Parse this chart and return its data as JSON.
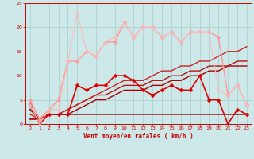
{
  "bg_color": "#cce8e8",
  "grid_color": "#aacccc",
  "xlabel": "Vent moyen/en rafales ( km/h )",
  "xlabel_color": "#cc0000",
  "tick_color": "#cc0000",
  "xlim": [
    -0.5,
    23.5
  ],
  "ylim": [
    0,
    25
  ],
  "yticks": [
    0,
    5,
    10,
    15,
    20,
    25
  ],
  "xticks": [
    0,
    1,
    2,
    3,
    4,
    5,
    6,
    7,
    8,
    9,
    10,
    11,
    12,
    13,
    14,
    15,
    16,
    17,
    18,
    19,
    20,
    21,
    22,
    23
  ],
  "series": [
    {
      "x": [
        0,
        1,
        2,
        3,
        4,
        5,
        6,
        7,
        8,
        9,
        10,
        11,
        12,
        13,
        14,
        15,
        16,
        17,
        18,
        19,
        20,
        21,
        22,
        23
      ],
      "y": [
        3,
        1,
        2,
        2,
        2,
        2,
        2,
        2,
        2,
        2,
        2,
        2,
        2,
        2,
        2,
        2,
        2,
        2,
        2,
        2,
        2,
        2,
        2,
        2
      ],
      "color": "#880000",
      "lw": 1.2,
      "marker": null,
      "ms": 0,
      "zorder": 2
    },
    {
      "x": [
        0,
        1,
        2,
        3,
        4,
        5,
        6,
        7,
        8,
        9,
        10,
        11,
        12,
        13,
        14,
        15,
        16,
        17,
        18,
        19,
        20,
        21,
        22,
        23
      ],
      "y": [
        1,
        1,
        2,
        2,
        2,
        3,
        4,
        5,
        5,
        6,
        7,
        7,
        7,
        8,
        8,
        9,
        9,
        10,
        10,
        11,
        11,
        12,
        12,
        12
      ],
      "color": "#aa0000",
      "lw": 1.0,
      "marker": null,
      "ms": 0,
      "zorder": 2
    },
    {
      "x": [
        0,
        1,
        2,
        3,
        4,
        5,
        6,
        7,
        8,
        9,
        10,
        11,
        12,
        13,
        14,
        15,
        16,
        17,
        18,
        19,
        20,
        21,
        22,
        23
      ],
      "y": [
        1,
        1,
        2,
        2,
        3,
        4,
        5,
        6,
        6,
        7,
        8,
        8,
        8,
        9,
        9,
        10,
        10,
        11,
        11,
        12,
        12,
        12,
        13,
        13
      ],
      "color": "#bb1111",
      "lw": 1.0,
      "marker": null,
      "ms": 0,
      "zorder": 2
    },
    {
      "x": [
        0,
        1,
        2,
        3,
        4,
        5,
        6,
        7,
        8,
        9,
        10,
        11,
        12,
        13,
        14,
        15,
        16,
        17,
        18,
        19,
        20,
        21,
        22,
        23
      ],
      "y": [
        2,
        1,
        2,
        2,
        3,
        4,
        5,
        6,
        7,
        8,
        9,
        9,
        9,
        10,
        11,
        11,
        12,
        12,
        13,
        13,
        14,
        15,
        15,
        16
      ],
      "color": "#cc2222",
      "lw": 1.0,
      "marker": null,
      "ms": 0,
      "zorder": 2
    },
    {
      "x": [
        0,
        1,
        2,
        3,
        4,
        5,
        6,
        7,
        8,
        9,
        10,
        11,
        12,
        13,
        14,
        15,
        16,
        17,
        18,
        19,
        20,
        21,
        22,
        23
      ],
      "y": [
        4,
        0,
        2,
        2,
        2,
        8,
        7,
        8,
        8,
        10,
        10,
        9,
        7,
        6,
        7,
        8,
        7,
        7,
        10,
        5,
        5,
        0,
        3,
        2
      ],
      "color": "#dd0000",
      "lw": 1.2,
      "marker": "D",
      "ms": 2.5,
      "zorder": 3
    },
    {
      "x": [
        0,
        1,
        2,
        3,
        4,
        5,
        6,
        7,
        8,
        9,
        10,
        11,
        12,
        13,
        14,
        15,
        16,
        17,
        18,
        19,
        20,
        21,
        22,
        23
      ],
      "y": [
        5,
        1,
        3,
        5,
        13,
        13,
        15,
        14,
        17,
        17,
        21,
        18,
        20,
        20,
        18,
        19,
        17,
        19,
        19,
        19,
        18,
        6,
        8,
        4
      ],
      "color": "#ff9999",
      "lw": 1.0,
      "marker": "D",
      "ms": 2.5,
      "zorder": 3
    },
    {
      "x": [
        0,
        1,
        2,
        3,
        4,
        5,
        6,
        7,
        8,
        9,
        10,
        11,
        12,
        13,
        14,
        15,
        16,
        17,
        18,
        19,
        20,
        21,
        22,
        23
      ],
      "y": [
        4,
        0,
        3,
        3,
        13,
        23,
        15,
        14,
        17,
        18,
        21,
        18,
        20,
        20,
        18,
        19,
        17,
        19,
        19,
        19,
        7,
        6,
        8,
        4
      ],
      "color": "#ffbbbb",
      "lw": 0.8,
      "marker": "*",
      "ms": 3,
      "zorder": 3
    }
  ]
}
